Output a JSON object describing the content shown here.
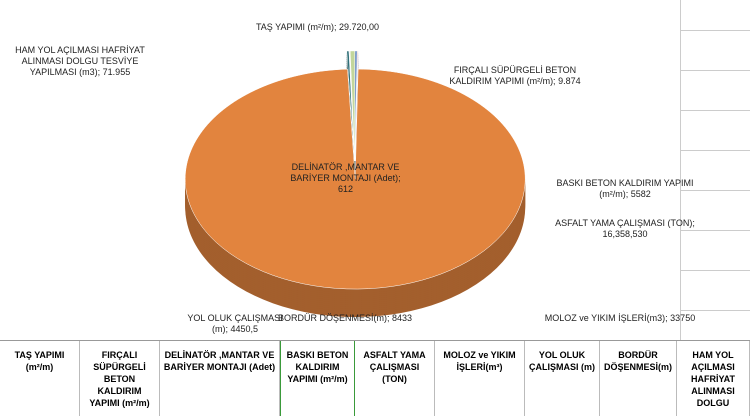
{
  "chart_data": {
    "type": "pie",
    "categories": [
      "TAŞ YAPIMI (m²/m);",
      "FIRÇALI SÜPÜRGELİ BETON KALDIRIM YAPIMI  (m²/m);",
      "BASKI BETON KALDIRIM YAPIMI (m²/m);",
      "ASFALT YAMA ÇALIŞMASI (TON);",
      "MOLOZ ve YIKIM İŞLERİ(m3);",
      "BORDÜR DÖŞENMESİ(m);",
      "YOL OLUK ÇALIŞMASI (m);",
      "DELİNATÖR ,MANTAR VE BARİYER MONTAJI (Adet);",
      "HAM YOL AÇILMASI HAFRİYAT ALINMASI  DOLGU TESVİYE YAPILMASI (m3);"
    ],
    "values": [
      29720,
      9874,
      5582,
      16358530,
      33750,
      8433,
      4450.5,
      612,
      71955
    ],
    "value_labels": [
      "29.720,00",
      "9.874",
      "5582",
      "16,358,530",
      "33750",
      "8433",
      "4450,5",
      "612",
      "71.955"
    ],
    "colors": [
      "#3e6db3",
      "#c0504d",
      "#8064a2",
      "#e2843e",
      "#2f6f77",
      "#8ea6d2",
      "#d99694",
      "#9fb0d6",
      "#c3d69b"
    ]
  },
  "table": {
    "headers": [
      "TAŞ YAPIMI (m²/m)",
      "FIRÇALI SÜPÜRGELİ BETON KALDIRIM YAPIMI  (m²/m)",
      "DELİNATÖR ,MANTAR VE BARİYER MONTAJI (Adet)",
      "BASKI BETON KALDIRIM YAPIMI (m²/m)",
      "ASFALT YAMA ÇALIŞMASI (TON)",
      "MOLOZ ve YIKIM İŞLERİ(m³)",
      "YOL OLUK ÇALIŞMASI (m)",
      "BORDÜR DÖŞENMESİ(m)",
      "HAM YOL AÇILMASI HAFRİYAT ALINMASI DOLGU"
    ]
  }
}
